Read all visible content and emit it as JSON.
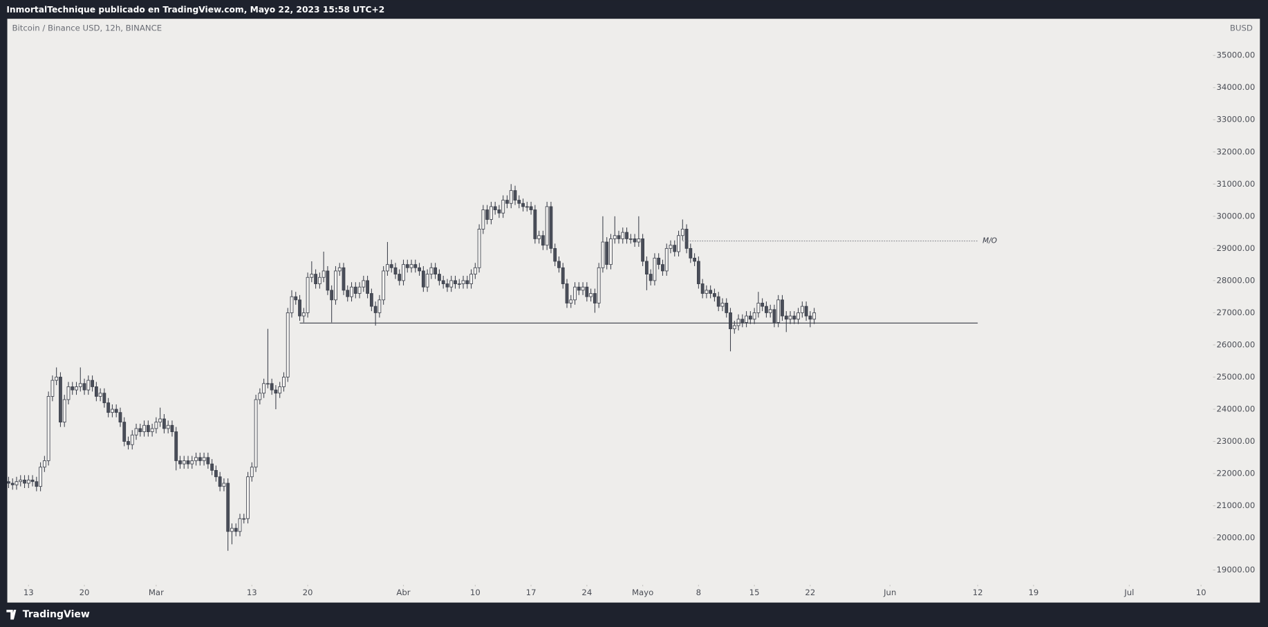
{
  "header": {
    "title": "InmortalTechnique publicado en TradingView.com, Mayo 22, 2023 15:58 UTC+2"
  },
  "footer": {
    "brand": "TradingView"
  },
  "chart_data": {
    "type": "candlestick",
    "title": "Bitcoin / Binance USD, 12h, BINANCE",
    "currency": "BUSD",
    "x": [
      "2023-02-10T12:00",
      "2023-02-11T00:00",
      "2023-02-11T12:00",
      "2023-02-12T00:00",
      "2023-02-12T12:00",
      "2023-02-13T00:00",
      "2023-02-13T12:00",
      "2023-02-14T00:00",
      "2023-02-14T12:00",
      "2023-02-15T00:00",
      "2023-02-15T12:00",
      "2023-02-16T00:00",
      "2023-02-16T12:00",
      "2023-02-17T00:00",
      "2023-02-17T12:00",
      "2023-02-18T00:00",
      "2023-02-18T12:00",
      "2023-02-19T00:00",
      "2023-02-19T12:00",
      "2023-02-20T00:00",
      "2023-02-20T12:00",
      "2023-02-21T00:00",
      "2023-02-21T12:00",
      "2023-02-22T00:00",
      "2023-02-22T12:00",
      "2023-02-23T00:00",
      "2023-02-23T12:00",
      "2023-02-24T00:00",
      "2023-02-24T12:00",
      "2023-02-25T00:00",
      "2023-02-25T12:00",
      "2023-02-26T00:00",
      "2023-02-26T12:00",
      "2023-02-27T00:00",
      "2023-02-27T12:00",
      "2023-02-28T00:00",
      "2023-02-28T12:00",
      "2023-03-01T00:00",
      "2023-03-01T12:00",
      "2023-03-02T00:00",
      "2023-03-02T12:00",
      "2023-03-03T00:00",
      "2023-03-03T12:00",
      "2023-03-04T00:00",
      "2023-03-04T12:00",
      "2023-03-05T00:00",
      "2023-03-05T12:00",
      "2023-03-06T00:00",
      "2023-03-06T12:00",
      "2023-03-07T00:00",
      "2023-03-07T12:00",
      "2023-03-08T00:00",
      "2023-03-08T12:00",
      "2023-03-09T00:00",
      "2023-03-09T12:00",
      "2023-03-10T00:00",
      "2023-03-10T12:00",
      "2023-03-11T00:00",
      "2023-03-11T12:00",
      "2023-03-12T00:00",
      "2023-03-12T12:00",
      "2023-03-13T00:00",
      "2023-03-13T12:00",
      "2023-03-14T00:00",
      "2023-03-14T12:00",
      "2023-03-15T00:00",
      "2023-03-15T12:00",
      "2023-03-16T00:00",
      "2023-03-16T12:00",
      "2023-03-17T00:00",
      "2023-03-17T12:00",
      "2023-03-18T00:00",
      "2023-03-18T12:00",
      "2023-03-19T00:00",
      "2023-03-19T12:00",
      "2023-03-20T00:00",
      "2023-03-20T12:00",
      "2023-03-21T00:00",
      "2023-03-21T12:00",
      "2023-03-22T00:00",
      "2023-03-22T12:00",
      "2023-03-23T00:00",
      "2023-03-23T12:00",
      "2023-03-24T00:00",
      "2023-03-24T12:00",
      "2023-03-25T00:00",
      "2023-03-25T12:00",
      "2023-03-26T00:00",
      "2023-03-26T12:00",
      "2023-03-27T00:00",
      "2023-03-27T12:00",
      "2023-03-28T00:00",
      "2023-03-28T12:00",
      "2023-03-29T00:00",
      "2023-03-29T12:00",
      "2023-03-30T00:00",
      "2023-03-30T12:00",
      "2023-03-31T00:00",
      "2023-03-31T12:00",
      "2023-04-01T00:00",
      "2023-04-01T12:00",
      "2023-04-02T00:00",
      "2023-04-02T12:00",
      "2023-04-03T00:00",
      "2023-04-03T12:00",
      "2023-04-04T00:00",
      "2023-04-04T12:00",
      "2023-04-05T00:00",
      "2023-04-05T12:00",
      "2023-04-06T00:00",
      "2023-04-06T12:00",
      "2023-04-07T00:00",
      "2023-04-07T12:00",
      "2023-04-08T00:00",
      "2023-04-08T12:00",
      "2023-04-09T00:00",
      "2023-04-09T12:00",
      "2023-04-10T00:00",
      "2023-04-10T12:00",
      "2023-04-11T00:00",
      "2023-04-11T12:00",
      "2023-04-12T00:00",
      "2023-04-12T12:00",
      "2023-04-13T00:00",
      "2023-04-13T12:00",
      "2023-04-14T00:00",
      "2023-04-14T12:00",
      "2023-04-15T00:00",
      "2023-04-15T12:00",
      "2023-04-16T00:00",
      "2023-04-16T12:00",
      "2023-04-17T00:00",
      "2023-04-17T12:00",
      "2023-04-18T00:00",
      "2023-04-18T12:00",
      "2023-04-19T00:00",
      "2023-04-19T12:00",
      "2023-04-20T00:00",
      "2023-04-20T12:00",
      "2023-04-21T00:00",
      "2023-04-21T12:00",
      "2023-04-22T00:00",
      "2023-04-22T12:00",
      "2023-04-23T00:00",
      "2023-04-23T12:00",
      "2023-04-24T00:00",
      "2023-04-24T12:00",
      "2023-04-25T00:00",
      "2023-04-25T12:00",
      "2023-04-26T00:00",
      "2023-04-26T12:00",
      "2023-04-27T00:00",
      "2023-04-27T12:00",
      "2023-04-28T00:00",
      "2023-04-28T12:00",
      "2023-04-29T00:00",
      "2023-04-29T12:00",
      "2023-04-30T00:00",
      "2023-04-30T12:00",
      "2023-05-01T00:00",
      "2023-05-01T12:00",
      "2023-05-02T00:00",
      "2023-05-02T12:00",
      "2023-05-03T00:00",
      "2023-05-03T12:00",
      "2023-05-04T00:00",
      "2023-05-04T12:00",
      "2023-05-05T00:00",
      "2023-05-05T12:00",
      "2023-05-06T00:00",
      "2023-05-06T12:00",
      "2023-05-07T00:00",
      "2023-05-07T12:00",
      "2023-05-08T00:00",
      "2023-05-08T12:00",
      "2023-05-09T00:00",
      "2023-05-09T12:00",
      "2023-05-10T00:00",
      "2023-05-10T12:00",
      "2023-05-11T00:00",
      "2023-05-11T12:00",
      "2023-05-12T00:00",
      "2023-05-12T12:00",
      "2023-05-13T00:00",
      "2023-05-13T12:00",
      "2023-05-14T00:00",
      "2023-05-14T12:00",
      "2023-05-15T00:00",
      "2023-05-15T12:00",
      "2023-05-16T00:00",
      "2023-05-16T12:00",
      "2023-05-17T00:00",
      "2023-05-17T12:00",
      "2023-05-18T00:00",
      "2023-05-18T12:00",
      "2023-05-19T00:00",
      "2023-05-19T12:00",
      "2023-05-20T00:00",
      "2023-05-20T12:00",
      "2023-05-21T00:00",
      "2023-05-21T12:00",
      "2023-05-22T00:00",
      "2023-05-22T12:00"
    ],
    "open": [
      21750,
      21700,
      21650,
      21750,
      21800,
      21700,
      21800,
      21750,
      21600,
      22200,
      22400,
      24400,
      24900,
      25000,
      23600,
      24300,
      24700,
      24600,
      24700,
      24800,
      24600,
      24900,
      24700,
      24400,
      24500,
      24200,
      23900,
      24000,
      23900,
      23600,
      23000,
      22900,
      23200,
      23400,
      23300,
      23500,
      23300,
      23400,
      23600,
      23700,
      23400,
      23500,
      23300,
      22400,
      22300,
      22400,
      22300,
      22400,
      22500,
      22400,
      22500,
      22300,
      22100,
      21900,
      21600,
      21700,
      20200,
      20300,
      20200,
      20600,
      20600,
      21900,
      22200,
      24300,
      24500,
      24800,
      24800,
      24600,
      24500,
      24700,
      25000,
      27000,
      27500,
      27400,
      26900,
      27000,
      28100,
      28200,
      27900,
      28100,
      28300,
      27700,
      27400,
      28300,
      28400,
      27700,
      27500,
      27800,
      27600,
      27800,
      28000,
      27600,
      27200,
      27000,
      27400,
      28300,
      28500,
      28400,
      28200,
      28000,
      28500,
      28400,
      28500,
      28400,
      28300,
      27800,
      28200,
      28400,
      28200,
      28000,
      27900,
      27800,
      28000,
      27900,
      27900,
      28000,
      27900,
      28200,
      28400,
      29600,
      30200,
      29900,
      30300,
      30200,
      30100,
      30500,
      30400,
      30800,
      30500,
      30400,
      30300,
      30300,
      30200,
      29300,
      29400,
      29100,
      30300,
      29000,
      28600,
      28400,
      27900,
      27300,
      27400,
      27800,
      27700,
      27800,
      27500,
      27600,
      27300,
      28400,
      29200,
      28500,
      29300,
      29400,
      29300,
      29500,
      29300,
      29300,
      29200,
      29300,
      28600,
      28200,
      28000,
      28700,
      28500,
      28300,
      29000,
      29100,
      28900,
      29400,
      29600,
      29000,
      28700,
      28600,
      27900,
      27600,
      27700,
      27600,
      27500,
      27200,
      27300,
      27000,
      26500,
      26600,
      26800,
      26700,
      26900,
      26800,
      27000,
      27300,
      27200,
      27000,
      27100,
      26700,
      27400,
      26900,
      26800,
      26900,
      26800,
      27000,
      27200,
      26900,
      26800
    ],
    "high": [
      21900,
      21850,
      21900,
      21950,
      21950,
      21950,
      21950,
      21900,
      22350,
      22550,
      24550,
      25050,
      25300,
      25150,
      24450,
      24850,
      24850,
      24850,
      25300,
      24950,
      25050,
      25050,
      24850,
      24650,
      24650,
      24350,
      24150,
      24150,
      24050,
      23750,
      23150,
      23350,
      23550,
      23550,
      23650,
      23650,
      23550,
      23750,
      24050,
      23850,
      23650,
      23650,
      23450,
      22550,
      22550,
      22550,
      22550,
      22650,
      22650,
      22650,
      22650,
      22450,
      22250,
      22050,
      21850,
      21850,
      20450,
      20450,
      20750,
      20750,
      22050,
      22350,
      24450,
      24650,
      24950,
      26500,
      24950,
      24750,
      24850,
      25150,
      27150,
      27700,
      27650,
      27550,
      27150,
      28250,
      28600,
      28350,
      28250,
      28900,
      28450,
      27850,
      28450,
      28550,
      28550,
      27850,
      27950,
      27950,
      27950,
      28150,
      28150,
      27750,
      27350,
      27550,
      28450,
      29200,
      28650,
      28550,
      28350,
      28650,
      28650,
      28650,
      28650,
      28550,
      28450,
      28350,
      28550,
      28550,
      28350,
      28150,
      28050,
      28150,
      28150,
      28050,
      28150,
      28150,
      28350,
      28550,
      29750,
      30350,
      30350,
      30450,
      30450,
      30350,
      30650,
      30650,
      31000,
      30950,
      30650,
      30550,
      30450,
      30450,
      30350,
      29550,
      29550,
      30450,
      30450,
      29150,
      28750,
      28550,
      28050,
      27550,
      27950,
      27950,
      27950,
      27950,
      27750,
      27750,
      28550,
      30000,
      29350,
      29450,
      30000,
      29550,
      29650,
      29650,
      29450,
      29450,
      30000,
      29450,
      28750,
      28350,
      28850,
      28850,
      28650,
      29150,
      29250,
      29250,
      29550,
      29900,
      29750,
      29150,
      28850,
      28750,
      28050,
      27850,
      27850,
      27750,
      27650,
      27450,
      27450,
      27150,
      26750,
      26950,
      26950,
      27050,
      27050,
      27150,
      27650,
      27450,
      27350,
      27250,
      27250,
      27550,
      27550,
      27050,
      27050,
      27050,
      27150,
      27350,
      27350,
      27050,
      27150
    ],
    "low": [
      21550,
      21500,
      21500,
      21600,
      21550,
      21550,
      21600,
      21450,
      21450,
      22050,
      22250,
      24250,
      24750,
      23450,
      23450,
      24150,
      24450,
      24450,
      24550,
      24450,
      24450,
      24550,
      24250,
      24250,
      24050,
      23750,
      23750,
      23750,
      23450,
      22850,
      22750,
      22750,
      23050,
      23150,
      23150,
      23150,
      23150,
      23250,
      23450,
      23250,
      23250,
      23150,
      22100,
      22150,
      22150,
      22150,
      22150,
      22250,
      22250,
      22250,
      22150,
      21950,
      21750,
      21450,
      21450,
      19600,
      19800,
      20050,
      20050,
      20450,
      20450,
      21750,
      22050,
      24150,
      24350,
      24650,
      24450,
      24000,
      24350,
      24550,
      24850,
      26850,
      27250,
      26750,
      26700,
      26850,
      27950,
      27750,
      27750,
      27950,
      27550,
      26700,
      27250,
      28150,
      27550,
      27350,
      27350,
      27450,
      27450,
      27650,
      27450,
      27050,
      26600,
      26850,
      27250,
      28150,
      28250,
      28050,
      27850,
      27850,
      28250,
      28250,
      28250,
      28150,
      27650,
      27650,
      28050,
      28050,
      27850,
      27750,
      27650,
      27650,
      27750,
      27750,
      27750,
      27750,
      27750,
      28050,
      28250,
      29450,
      29750,
      29750,
      30050,
      29950,
      29950,
      30250,
      30250,
      30350,
      30250,
      30150,
      30150,
      30050,
      29150,
      29150,
      28950,
      28950,
      28850,
      28450,
      28250,
      27750,
      27150,
      27150,
      27250,
      27550,
      27550,
      27350,
      27350,
      27000,
      27150,
      28250,
      28350,
      28350,
      29150,
      29150,
      29150,
      29150,
      29150,
      29050,
      29050,
      28450,
      27700,
      27850,
      27850,
      28350,
      28150,
      28150,
      28850,
      28750,
      28750,
      29250,
      28850,
      28550,
      28450,
      27750,
      27450,
      27450,
      27450,
      27350,
      27050,
      27050,
      26850,
      25800,
      26350,
      26450,
      26550,
      26550,
      26650,
      26650,
      26850,
      27050,
      26850,
      26850,
      26550,
      26550,
      26750,
      26400,
      26650,
      26650,
      26650,
      26850,
      26750,
      26550,
      26650
    ],
    "close": [
      21700,
      21650,
      21750,
      21800,
      21700,
      21800,
      21750,
      21600,
      22200,
      22400,
      24400,
      24900,
      25000,
      23600,
      24300,
      24700,
      24600,
      24700,
      24800,
      24600,
      24900,
      24700,
      24400,
      24500,
      24200,
      23900,
      24000,
      23900,
      23600,
      23000,
      22900,
      23200,
      23400,
      23300,
      23500,
      23300,
      23400,
      23600,
      23700,
      23400,
      23500,
      23300,
      22400,
      22300,
      22400,
      22300,
      22400,
      22500,
      22400,
      22500,
      22300,
      22100,
      21900,
      21600,
      21700,
      20200,
      20300,
      20200,
      20600,
      20600,
      21900,
      22200,
      24300,
      24500,
      24800,
      24800,
      24600,
      24500,
      24700,
      25000,
      27000,
      27500,
      27400,
      26900,
      27000,
      28100,
      28200,
      27900,
      28100,
      28300,
      27700,
      27400,
      28300,
      28400,
      27700,
      27500,
      27800,
      27600,
      27800,
      28000,
      27600,
      27200,
      27000,
      27400,
      28300,
      28500,
      28400,
      28200,
      28000,
      28500,
      28400,
      28500,
      28400,
      28300,
      27800,
      28200,
      28400,
      28200,
      28000,
      27900,
      27800,
      28000,
      27900,
      27900,
      28000,
      27900,
      28200,
      28400,
      29600,
      30200,
      29900,
      30300,
      30200,
      30100,
      30500,
      30400,
      30800,
      30500,
      30400,
      30300,
      30300,
      30200,
      29300,
      29400,
      29100,
      30300,
      29000,
      28600,
      28400,
      27900,
      27300,
      27400,
      27800,
      27700,
      27800,
      27500,
      27600,
      27300,
      28400,
      29200,
      28500,
      29300,
      29400,
      29300,
      29500,
      29300,
      29300,
      29200,
      29300,
      28600,
      28200,
      28000,
      28700,
      28500,
      28300,
      29000,
      29100,
      28900,
      29400,
      29600,
      29000,
      28700,
      28600,
      27900,
      27600,
      27700,
      27600,
      27500,
      27200,
      27300,
      27000,
      26500,
      26600,
      26800,
      26700,
      26900,
      26800,
      27000,
      27300,
      27200,
      27000,
      27100,
      26700,
      27400,
      26900,
      26800,
      26900,
      26800,
      27000,
      27200,
      26900,
      26800,
      27000
    ],
    "up_color": "#f4f3f1",
    "down_color": "#4a4e59",
    "outline_color": "#3b3f4a",
    "xlim": [
      "2023-02-10T08:00",
      "2023-07-11T12:00"
    ],
    "xticks": [
      {
        "value": "2023-02-13",
        "label": "13"
      },
      {
        "value": "2023-02-20",
        "label": "20"
      },
      {
        "value": "2023-03-01",
        "label": "Mar"
      },
      {
        "value": "2023-03-13",
        "label": "13"
      },
      {
        "value": "2023-03-20",
        "label": "20"
      },
      {
        "value": "2023-04-01",
        "label": "Abr"
      },
      {
        "value": "2023-04-10",
        "label": "10"
      },
      {
        "value": "2023-04-17",
        "label": "17"
      },
      {
        "value": "2023-04-24",
        "label": "24"
      },
      {
        "value": "2023-05-01",
        "label": "Mayo"
      },
      {
        "value": "2023-05-08",
        "label": "8"
      },
      {
        "value": "2023-05-15",
        "label": "15"
      },
      {
        "value": "2023-05-22",
        "label": "22"
      },
      {
        "value": "2023-06-01",
        "label": "Jun"
      },
      {
        "value": "2023-06-12",
        "label": "12"
      },
      {
        "value": "2023-06-19",
        "label": "19"
      },
      {
        "value": "2023-07-01",
        "label": "Jul"
      },
      {
        "value": "2023-07-10",
        "label": "10"
      }
    ],
    "ylim": [
      18040,
      36140
    ],
    "yticks": [
      {
        "value": 19000,
        "label": "19000.00"
      },
      {
        "value": 20000,
        "label": "20000.00"
      },
      {
        "value": 21000,
        "label": "21000.00"
      },
      {
        "value": 22000,
        "label": "22000.00"
      },
      {
        "value": 23000,
        "label": "23000.00"
      },
      {
        "value": 24000,
        "label": "24000.00"
      },
      {
        "value": 25000,
        "label": "25000.00"
      },
      {
        "value": 26000,
        "label": "26000.00"
      },
      {
        "value": 27000,
        "label": "27000.00"
      },
      {
        "value": 28000,
        "label": "28000.00"
      },
      {
        "value": 29000,
        "label": "29000.00"
      },
      {
        "value": 30000,
        "label": "30000.00"
      },
      {
        "value": 31000,
        "label": "31000.00"
      },
      {
        "value": 32000,
        "label": "32000.00"
      },
      {
        "value": 33000,
        "label": "33000.00"
      },
      {
        "value": 34000,
        "label": "34000.00"
      },
      {
        "value": 35000,
        "label": "35000.00"
      }
    ],
    "grid": false,
    "hlines": [
      {
        "value": 26680,
        "start": "2023-03-19T00:00",
        "end": "2023-06-12T00:00",
        "style": "solid",
        "color": "#363a45"
      },
      {
        "value": 29230,
        "start": "2023-05-06T00:00",
        "end": "2023-06-12T00:00",
        "style": "dotted",
        "color": "#6a6d75",
        "label": "M/O"
      }
    ]
  }
}
